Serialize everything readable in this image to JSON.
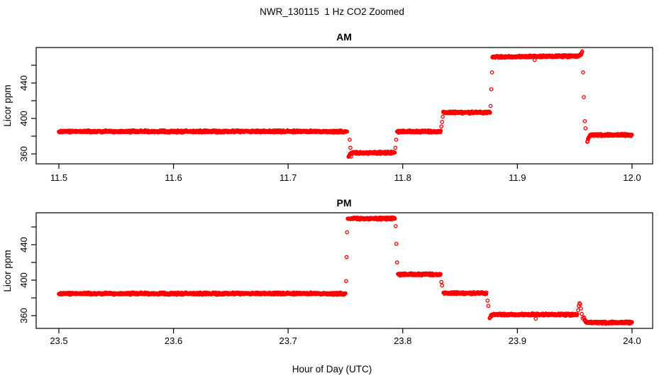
{
  "chart_data": {
    "type": "scatter",
    "main_title": "NWR_130115  1 Hz CO2 Zoomed",
    "xlabel": "Hour of Day (UTC)",
    "ylabel": "Licor ppm",
    "marker": "open-circle",
    "color": "#FF0000",
    "axis_color": "#000000",
    "sample_rate_hz": 1,
    "panels": [
      {
        "title": "AM",
        "xlim": [
          11.4802,
          12.018
        ],
        "ylim": [
          348.8,
          480.0
        ],
        "xticks": [
          11.5,
          11.6,
          11.7,
          11.8,
          11.9,
          12.0
        ],
        "xtick_labels": [
          "11.5",
          "11.6",
          "11.7",
          "11.8",
          "11.9",
          "12.0"
        ],
        "yticks": [
          360,
          380,
          400,
          420,
          440,
          460
        ],
        "ytick_labeled_values": [
          360,
          400,
          440
        ],
        "ytick_labels": [
          "360",
          "400",
          "440"
        ],
        "segments": [
          {
            "t_start": 11.5,
            "t_end": 11.7515,
            "ppm": 385.3,
            "noise": 0.9
          },
          {
            "t_start": 11.7527,
            "t_end": 11.793,
            "ppm": 361.3,
            "noise": 0.9,
            "spike_start": -4.5
          },
          {
            "t_start": 11.795,
            "t_end": 11.833,
            "ppm": 385.3,
            "noise": 0.9
          },
          {
            "t_start": 11.8353,
            "t_end": 11.876,
            "ppm": 406.8,
            "noise": 0.9
          },
          {
            "t_start": 11.8782,
            "t_end": 11.9565,
            "ppm": 469.3,
            "noise": 0.9,
            "drift": 1.2,
            "bump_end": 4.0
          },
          {
            "t_start": 11.961,
            "t_end": 12.0,
            "ppm": 381.4,
            "noise": 0.9,
            "spike_start": -8.0
          }
        ],
        "transition_points": [
          [
            11.7537,
            376
          ],
          [
            11.7543,
            367
          ],
          [
            11.7549,
            357
          ],
          [
            11.7936,
            367
          ],
          [
            11.7942,
            376
          ],
          [
            11.8337,
            391
          ],
          [
            11.8343,
            396
          ],
          [
            11.8349,
            402
          ],
          [
            11.8766,
            414
          ],
          [
            11.8772,
            433
          ],
          [
            11.8778,
            452
          ],
          [
            11.9573,
            452
          ],
          [
            11.958,
            424
          ],
          [
            11.9588,
            397
          ],
          [
            11.9594,
            389
          ]
        ],
        "outliers": [
          [
            11.915,
            466.0
          ]
        ]
      },
      {
        "title": "PM",
        "xlim": [
          23.4802,
          24.018
        ],
        "ylim": [
          345.6,
          476.0
        ],
        "xticks": [
          23.5,
          23.6,
          23.7,
          23.8,
          23.9,
          24.0
        ],
        "xtick_labels": [
          "23.5",
          "23.6",
          "23.7",
          "23.8",
          "23.9",
          "24.0"
        ],
        "yticks": [
          360,
          380,
          400,
          420,
          440,
          460
        ],
        "ytick_labeled_values": [
          360,
          400,
          440
        ],
        "ytick_labels": [
          "360",
          "400",
          "440"
        ],
        "segments": [
          {
            "t_start": 23.5,
            "t_end": 23.75,
            "ppm": 384.8,
            "noise": 0.9
          },
          {
            "t_start": 23.752,
            "t_end": 23.793,
            "ppm": 469.5,
            "noise": 0.9
          },
          {
            "t_start": 23.7958,
            "t_end": 23.833,
            "ppm": 406.6,
            "noise": 0.9
          },
          {
            "t_start": 23.8355,
            "t_end": 23.873,
            "ppm": 385.4,
            "noise": 0.9
          },
          {
            "t_start": 23.8758,
            "t_end": 23.9522,
            "ppm": 361.2,
            "noise": 0.9,
            "spike_start": -4.0
          },
          {
            "t_start": 23.958,
            "t_end": 24.0,
            "ppm": 352.2,
            "noise": 0.9,
            "spike_start": 6.0
          }
        ],
        "transition_points": [
          [
            23.7506,
            399
          ],
          [
            23.751,
            426
          ],
          [
            23.7514,
            454
          ],
          [
            23.7938,
            461
          ],
          [
            23.7944,
            441
          ],
          [
            23.795,
            420
          ],
          [
            23.8337,
            398
          ],
          [
            23.8343,
            394
          ],
          [
            23.874,
            377
          ],
          [
            23.8747,
            371
          ],
          [
            23.953,
            366
          ],
          [
            23.9536,
            371
          ],
          [
            23.9542,
            374
          ],
          [
            23.9548,
            373
          ],
          [
            23.9554,
            368
          ],
          [
            23.9561,
            362
          ],
          [
            23.9569,
            357
          ]
        ],
        "outliers": [
          [
            23.916,
            356.5
          ]
        ]
      }
    ]
  }
}
